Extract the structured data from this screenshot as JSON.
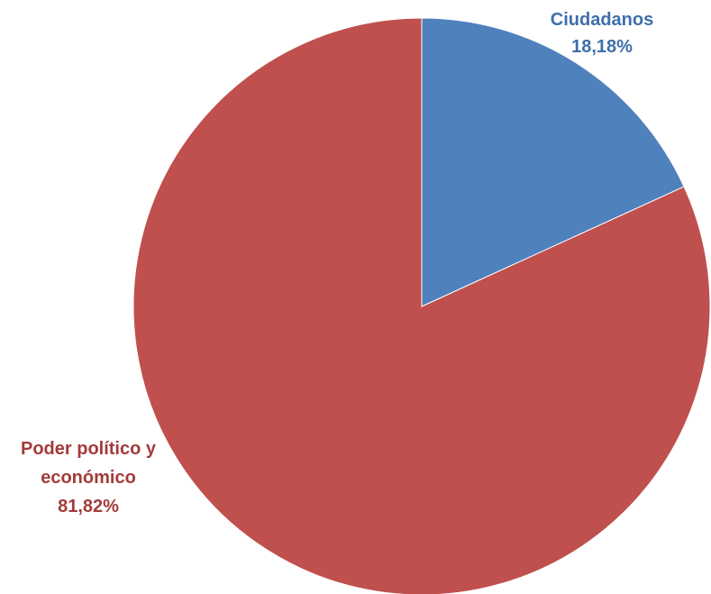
{
  "chart_data": {
    "type": "pie",
    "categories": [
      "Ciudadanos",
      "Poder político y económico"
    ],
    "values": [
      18.18,
      81.82
    ],
    "value_labels": [
      "18,18%",
      "81,82%"
    ],
    "colors": [
      "#4F81BD",
      "#C0504D"
    ],
    "label_lines": [
      [
        "Ciudadanos",
        "18,18%"
      ],
      [
        "Poder político y",
        "económico",
        "81,82%"
      ]
    ],
    "start_angle": "12 o'clock, clockwise",
    "legend": "none"
  }
}
